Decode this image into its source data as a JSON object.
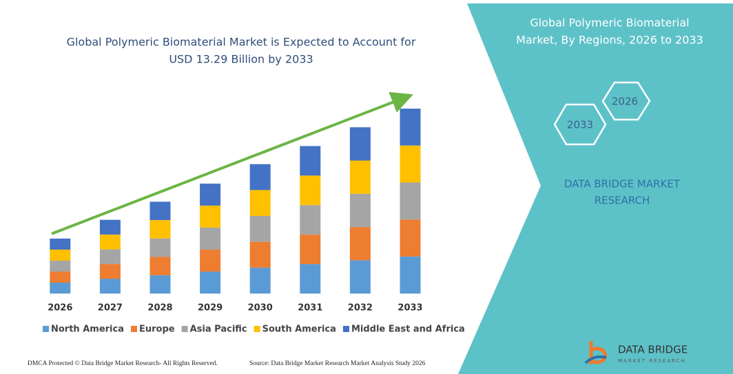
{
  "chart_data": {
    "type": "stacked-bar",
    "title": [
      "Global Polymeric Biomaterial Market is Expected to Account for",
      "USD 13.29 Billion by 2033"
    ],
    "categories": [
      "2026",
      "2027",
      "2028",
      "2029",
      "2030",
      "2031",
      "2032",
      "2033"
    ],
    "series": [
      {
        "name": "North America",
        "color": "#5b9bd5",
        "values": [
          0.79,
          1.06,
          1.32,
          1.58,
          1.86,
          2.12,
          2.39,
          2.66
        ]
      },
      {
        "name": "Europe",
        "color": "#ed7d31",
        "values": [
          0.79,
          1.06,
          1.32,
          1.58,
          1.86,
          2.12,
          2.39,
          2.66
        ]
      },
      {
        "name": "Asia Pacific",
        "color": "#a5a5a5",
        "values": [
          0.79,
          1.06,
          1.32,
          1.58,
          1.86,
          2.12,
          2.39,
          2.66
        ]
      },
      {
        "name": "South America",
        "color": "#ffc000",
        "values": [
          0.79,
          1.06,
          1.32,
          1.58,
          1.86,
          2.12,
          2.39,
          2.66
        ]
      },
      {
        "name": "Middle East and Africa",
        "color": "#4472c4",
        "values": [
          0.79,
          1.06,
          1.32,
          1.58,
          1.86,
          2.12,
          2.39,
          2.65
        ]
      }
    ],
    "ylim": [
      0,
      13.29
    ]
  },
  "panel": {
    "title": [
      "Global Polymeric Biomaterial",
      "Market, By Regions, 2026 to 2033"
    ],
    "hexagons": [
      "2026",
      "2033"
    ],
    "brand": [
      "DATA BRIDGE MARKET",
      "RESEARCH"
    ]
  },
  "footer": {
    "copyright": "DMCA Protected © Data Bridge Market Research- All Rights Reserved.",
    "source": "Source: Data Bridge Market Research Market Analysis Study 2026"
  },
  "logo": {
    "name": "DATA BRIDGE",
    "tagline": "MARKET RESEARCH"
  }
}
